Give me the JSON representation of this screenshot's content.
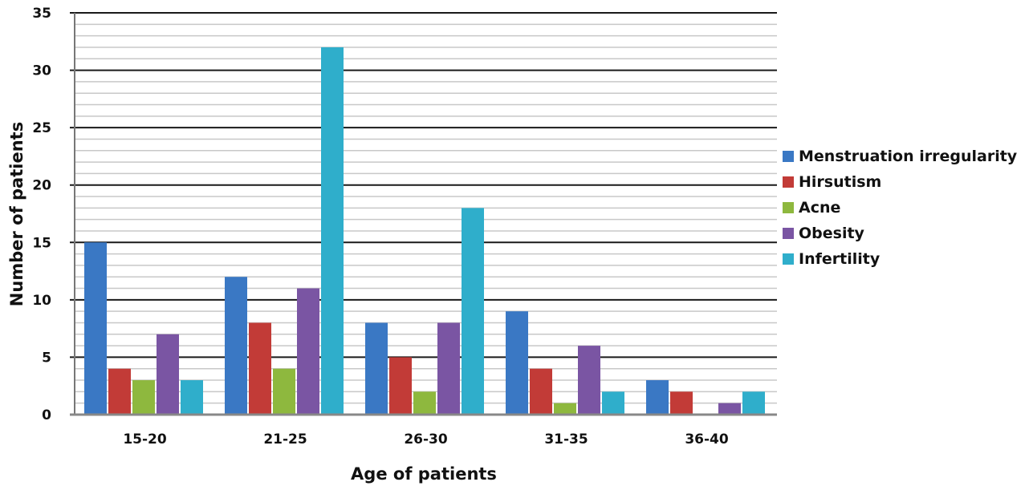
{
  "chart_data": {
    "type": "bar",
    "title": "",
    "xlabel": "Age of patients",
    "ylabel": "Number of patients",
    "categories": [
      "15-20",
      "21-25",
      "26-30",
      "31-35",
      "36-40"
    ],
    "ylim": [
      0,
      35
    ],
    "yticks": [
      0,
      5,
      10,
      15,
      20,
      25,
      30,
      35
    ],
    "grid": true,
    "legend_position": "right",
    "series": [
      {
        "name": "Menstruation irregularity",
        "color": "#3a78c4",
        "values": [
          15,
          12,
          8,
          9,
          3
        ]
      },
      {
        "name": "Hirsutism",
        "color": "#c23b37",
        "values": [
          4,
          8,
          5,
          4,
          2
        ]
      },
      {
        "name": "Acne",
        "color": "#8eb83e",
        "values": [
          3,
          4,
          2,
          1,
          0
        ]
      },
      {
        "name": "Obesity",
        "color": "#7a55a3",
        "values": [
          7,
          11,
          8,
          6,
          1
        ]
      },
      {
        "name": "Infertility",
        "color": "#2faecb",
        "values": [
          3,
          32,
          18,
          2,
          2
        ]
      }
    ]
  }
}
